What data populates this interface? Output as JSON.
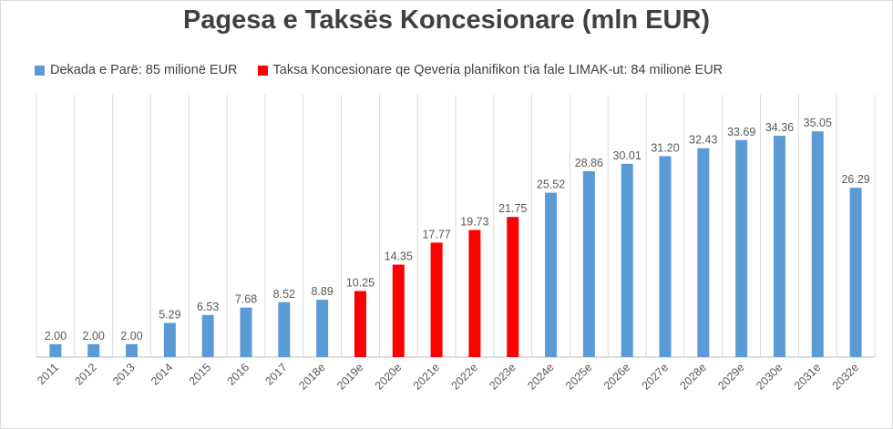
{
  "chart_data": {
    "type": "bar",
    "title": "Pagesa e Taksës Koncesionare (mln EUR)",
    "xlabel": "",
    "ylabel": "",
    "ylim": [
      0,
      40
    ],
    "grid": "vertical lines between categories",
    "legend_position": "top",
    "categories": [
      "2011",
      "2012",
      "2013",
      "2014",
      "2015",
      "2016",
      "2017",
      "2018e",
      "2019e",
      "2020e",
      "2021e",
      "2022e",
      "2023e",
      "2024e",
      "2025e",
      "2026e",
      "2027e",
      "2028e",
      "2029e",
      "2030e",
      "2031e",
      "2032e"
    ],
    "values": [
      2.0,
      2.0,
      2.0,
      5.29,
      6.53,
      7.68,
      8.52,
      8.89,
      10.25,
      14.35,
      17.77,
      19.73,
      21.75,
      25.52,
      28.86,
      30.01,
      31.2,
      32.43,
      33.69,
      34.36,
      35.05,
      26.29
    ],
    "value_labels": [
      "2.00",
      "2.00",
      "2.00",
      "5.29",
      "6.53",
      "7.68",
      "8.52",
      "8.89",
      "10.25",
      "14.35",
      "17.77",
      "19.73",
      "21.75",
      "25.52",
      "28.86",
      "30.01",
      "31.20",
      "32.43",
      "33.69",
      "34.36",
      "35.05",
      "26.29"
    ],
    "series": [
      {
        "name": "Dekada e Parë: 85 milionë EUR",
        "color": "#5b9bd5",
        "categories": [
          "2011",
          "2012",
          "2013",
          "2014",
          "2015",
          "2016",
          "2017",
          "2018e",
          "2024e",
          "2025e",
          "2026e",
          "2027e",
          "2028e",
          "2029e",
          "2030e",
          "2031e",
          "2032e"
        ]
      },
      {
        "name": "Taksa Koncesionare qe Qeveria planifikon t'ia fale LIMAK-ut: 84 milionë EUR",
        "color": "#ff0000",
        "categories": [
          "2019e",
          "2020e",
          "2021e",
          "2022e",
          "2023e"
        ]
      }
    ]
  }
}
